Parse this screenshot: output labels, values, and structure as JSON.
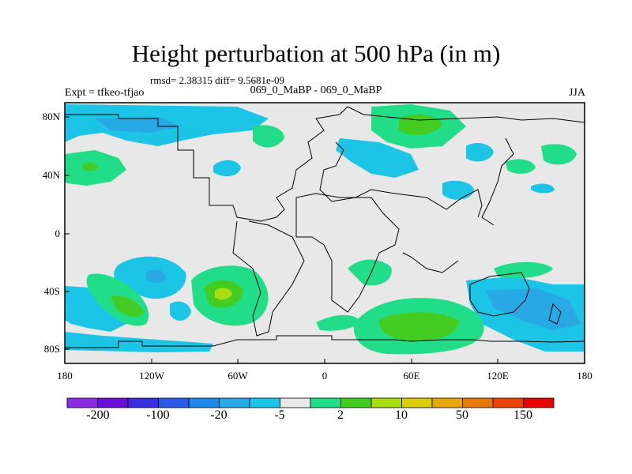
{
  "title": "Height perturbation at 500 hPa (in m)",
  "stats_line": "rmsd= 2.38315 diff= 9.5681e-09",
  "experiment": "Expt = tfkeo-tfjao",
  "subtitle": "069_0_MaBP - 069_0_MaBP",
  "season": "JJA",
  "y_ticks": [
    "80N",
    "40N",
    "0",
    "40S",
    "80S"
  ],
  "x_ticks": [
    "180",
    "120W",
    "60W",
    "0",
    "60E",
    "120E",
    "180"
  ],
  "colorbar": {
    "colors": [
      "#8a2be2",
      "#6a0dd6",
      "#3a2ee0",
      "#2a5ae6",
      "#1e88e8",
      "#28a8e4",
      "#1cc4e6",
      "#e8e8e8",
      "#22dd88",
      "#44cc22",
      "#aadd11",
      "#ddcc00",
      "#e6a800",
      "#e67a00",
      "#e64400",
      "#e60000"
    ],
    "labels": [
      "-200",
      "-100",
      "-20",
      "-5",
      "2",
      "10",
      "50",
      "150"
    ]
  },
  "legend_colors": {
    "land_background": "#e8e8e8",
    "light_negative": "#1cc4e6",
    "mid_negative": "#28a8e4",
    "light_positive": "#22dd88",
    "mid_positive": "#44cc22",
    "strong_positive": "#aadd11"
  }
}
